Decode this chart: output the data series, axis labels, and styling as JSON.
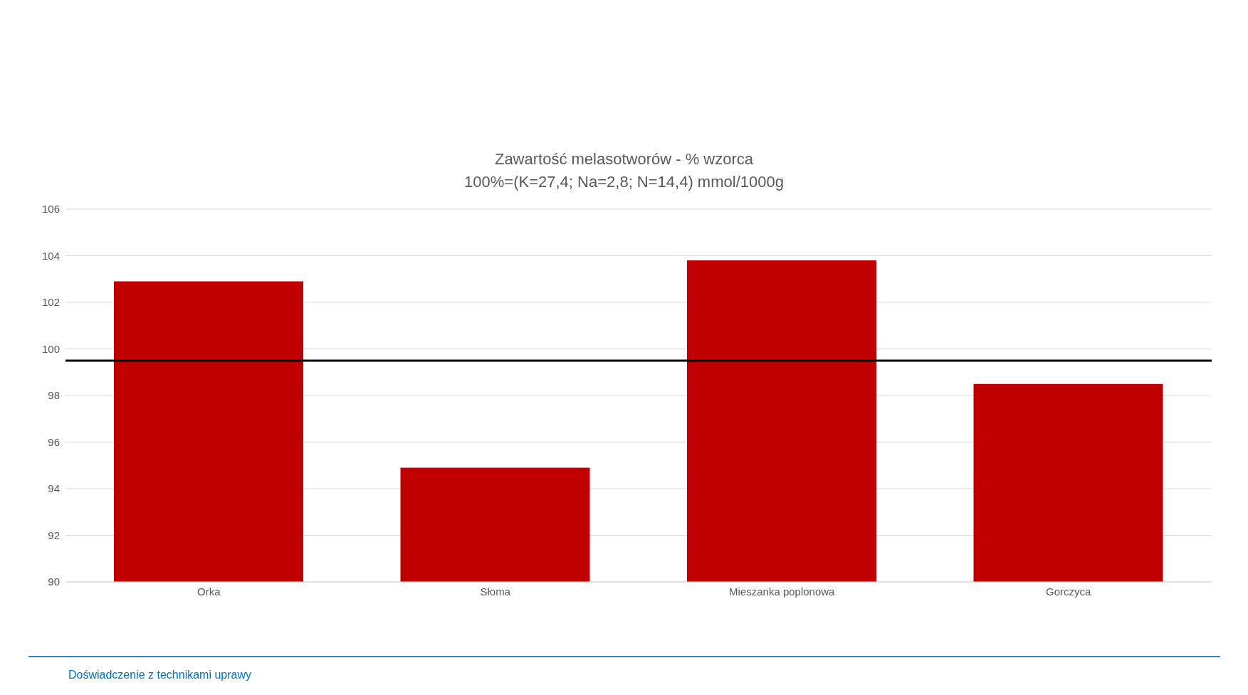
{
  "chart_data": {
    "type": "bar",
    "title": "Zawartość melasotworów - % wzorca",
    "subtitle": "100%=(K=27,4; Na=2,8; N=14,4) mmol/1000g",
    "categories": [
      "Orka",
      "Słoma",
      "Mieszanka poplonowa",
      "Gorczyca"
    ],
    "values": [
      102.9,
      94.9,
      103.8,
      98.5
    ],
    "color": "#c00000",
    "ylim": [
      90,
      106
    ],
    "yticks": [
      90,
      92,
      94,
      96,
      98,
      100,
      102,
      104,
      106
    ],
    "grid": "y",
    "ref_lines": [
      {
        "axis": "y",
        "value": 99.5,
        "color": "#000000"
      }
    ],
    "annotations": [
      "Doświadczenie z technikami uprawy"
    ]
  }
}
